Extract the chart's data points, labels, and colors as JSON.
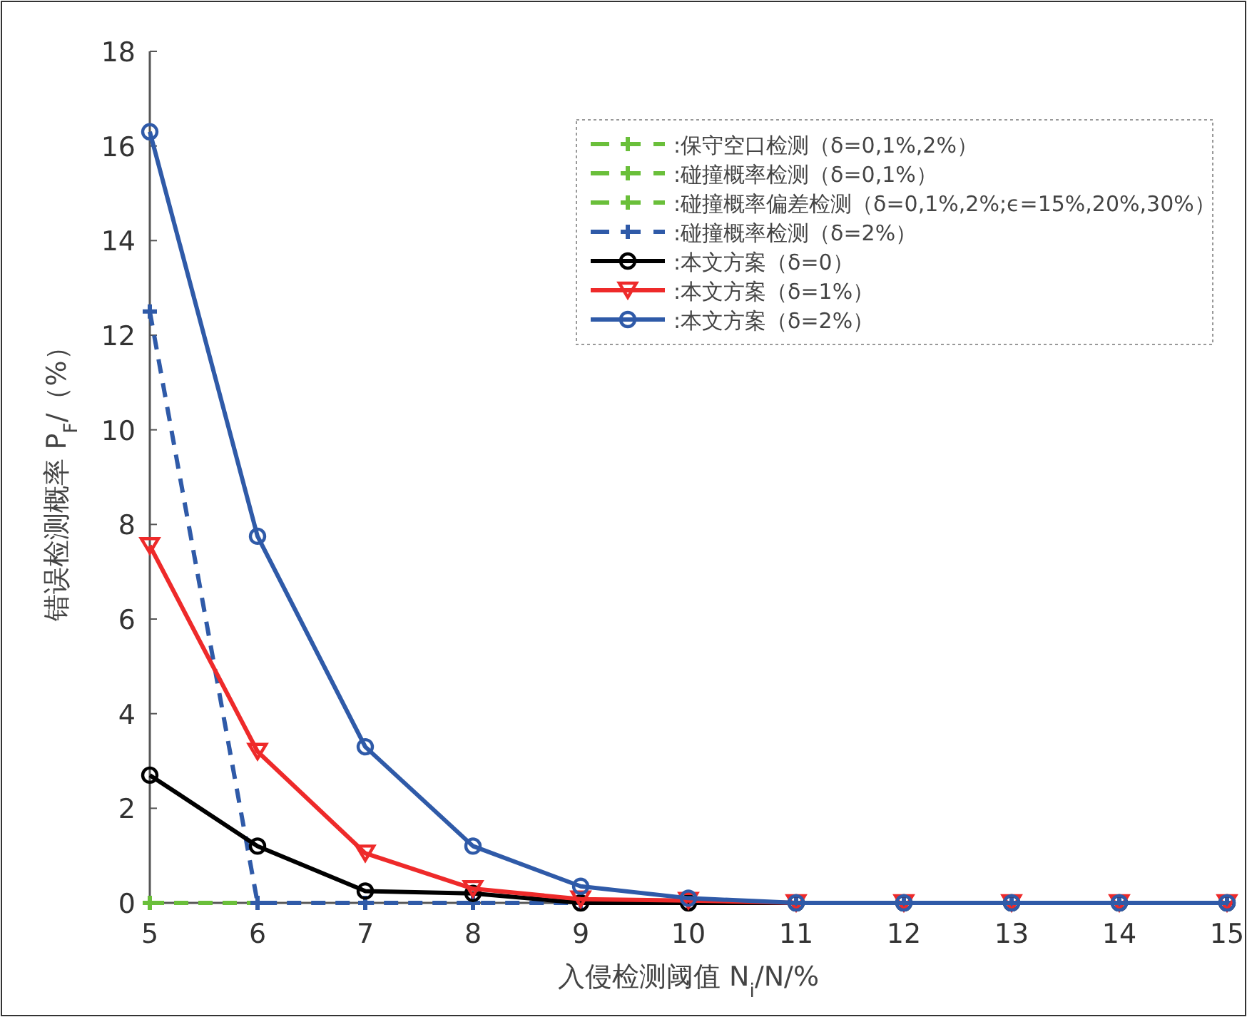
{
  "chart_data": {
    "type": "line",
    "xlabel": "入侵检测阈值 N$_{i}$/N/%",
    "ylabel": "错误检测概率 P$_{F}$/（%）",
    "x": [
      5,
      6,
      7,
      8,
      9,
      10,
      11,
      12,
      13,
      14,
      15
    ],
    "xlim": [
      5,
      15
    ],
    "xticks": [
      5,
      6,
      7,
      8,
      9,
      10,
      11,
      12,
      13,
      14,
      15
    ],
    "ylim": [
      0,
      18
    ],
    "yticks": [
      0,
      2,
      4,
      6,
      8,
      10,
      12,
      14,
      16,
      18
    ],
    "grid": false,
    "legend": "top right",
    "series": [
      {
        "name": ":保守空口检测（δ=0,1%,2%）",
        "color": "#6abf3a",
        "marker": "cross",
        "line_style": "dashed",
        "values": [
          null,
          null,
          null,
          null,
          null,
          null,
          null,
          null,
          null,
          null,
          null
        ]
      },
      {
        "name": ":碰撞概率检测（δ=0,1%）",
        "color": "#6abf3a",
        "marker": "cross",
        "line_style": "dashed",
        "values": [
          null,
          null,
          null,
          null,
          null,
          null,
          null,
          null,
          null,
          null,
          null
        ]
      },
      {
        "name": ":碰撞概率偏差检测（δ=0,1%,2%;ϵ=15%,20%,30%）",
        "color": "#6abf3a",
        "marker": "cross",
        "line_style": "dashed",
        "values": [
          0,
          0,
          null,
          null,
          null,
          null,
          null,
          null,
          null,
          null,
          null
        ]
      },
      {
        "name": ":碰撞概率检测（δ=2%）",
        "color": "#2f5aa8",
        "marker": "cross",
        "line_style": "dashed",
        "values": [
          12.5,
          0,
          0,
          0,
          0,
          0,
          0,
          0,
          0,
          0,
          0
        ]
      },
      {
        "name": ":本文方案（δ=0）",
        "color": "#000000",
        "marker": "circle",
        "line_style": "solid",
        "values": [
          2.7,
          1.2,
          0.25,
          0.2,
          0,
          0,
          0,
          0,
          0,
          0,
          0
        ]
      },
      {
        "name": ":本文方案（δ=1%）",
        "color": "#ee2a2a",
        "marker": "triangle",
        "line_style": "solid",
        "values": [
          7.55,
          3.2,
          1.05,
          0.3,
          0.08,
          0.05,
          0,
          0,
          0,
          0,
          0
        ]
      },
      {
        "name": ":本文方案（δ=2%）",
        "color": "#2f5aa8",
        "marker": "circle",
        "line_style": "solid",
        "values": [
          16.3,
          7.75,
          3.3,
          1.2,
          0.35,
          0.1,
          0,
          0,
          0,
          0,
          0
        ]
      }
    ]
  }
}
